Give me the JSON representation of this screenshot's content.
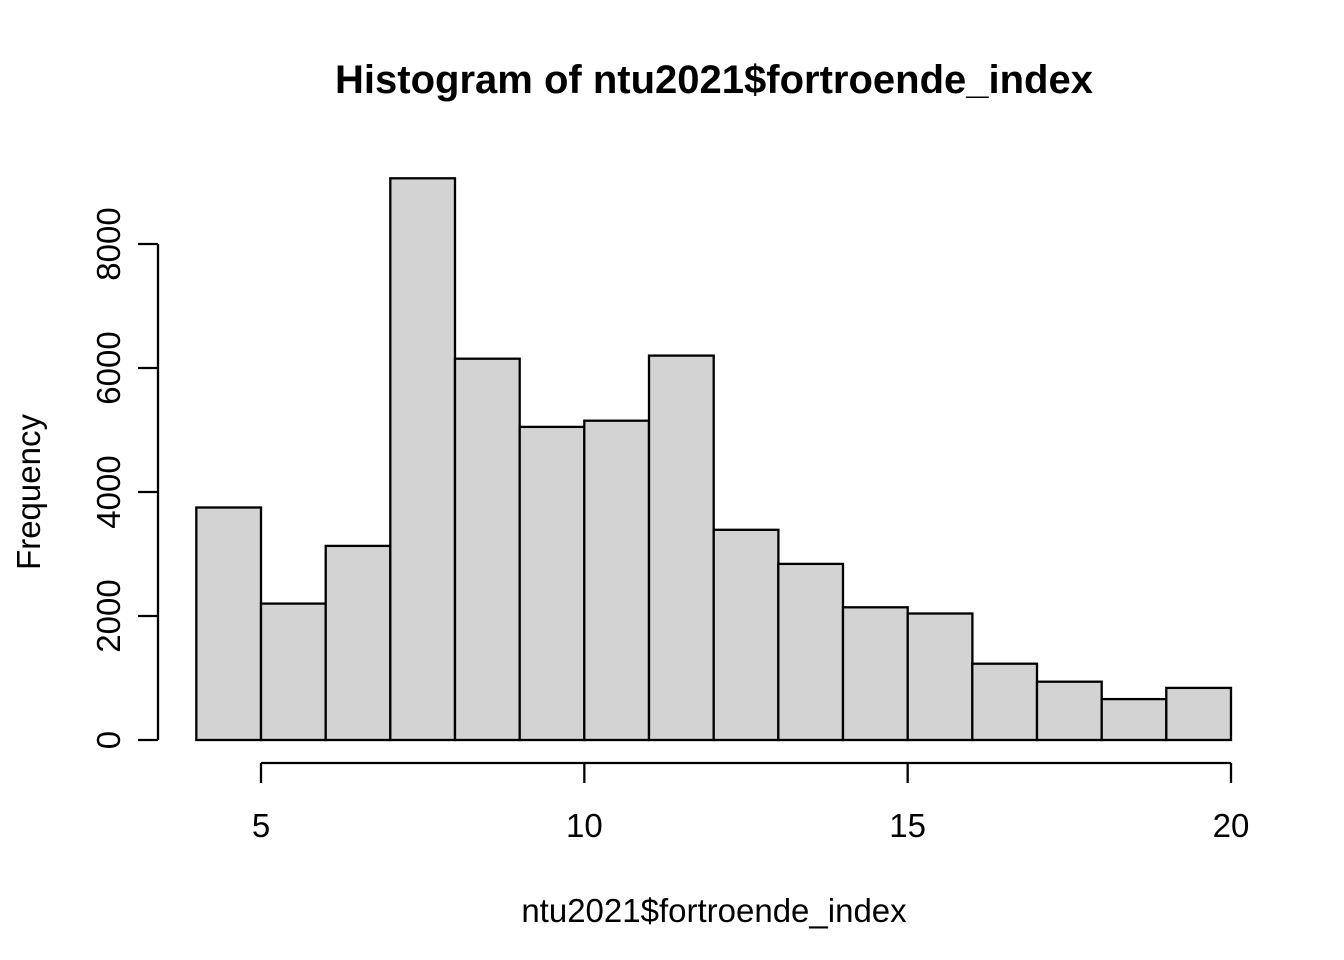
{
  "chart_data": {
    "type": "bar",
    "subtype": "histogram",
    "title": "Histogram of ntu2021$fortroende_index",
    "xlabel": "ntu2021$fortroende_index",
    "ylabel": "Frequency",
    "bin_edges": [
      4,
      5,
      6,
      7,
      8,
      9,
      10,
      11,
      12,
      13,
      14,
      15,
      16,
      17,
      18,
      19,
      20
    ],
    "values": [
      3750,
      2200,
      3130,
      9060,
      6150,
      5050,
      5150,
      6200,
      3390,
      2840,
      2140,
      2040,
      1230,
      940,
      660,
      840
    ],
    "x_ticks": [
      5,
      10,
      15,
      20
    ],
    "y_ticks": [
      0,
      2000,
      4000,
      6000,
      8000
    ],
    "xlim": [
      4,
      20
    ],
    "ylim": [
      0,
      8000
    ],
    "grid": false,
    "legend": false,
    "bar_fill": "#d3d3d3",
    "bar_stroke": "#000000",
    "axis_color": "#000000",
    "text_color": "#000000",
    "background": "#ffffff"
  }
}
